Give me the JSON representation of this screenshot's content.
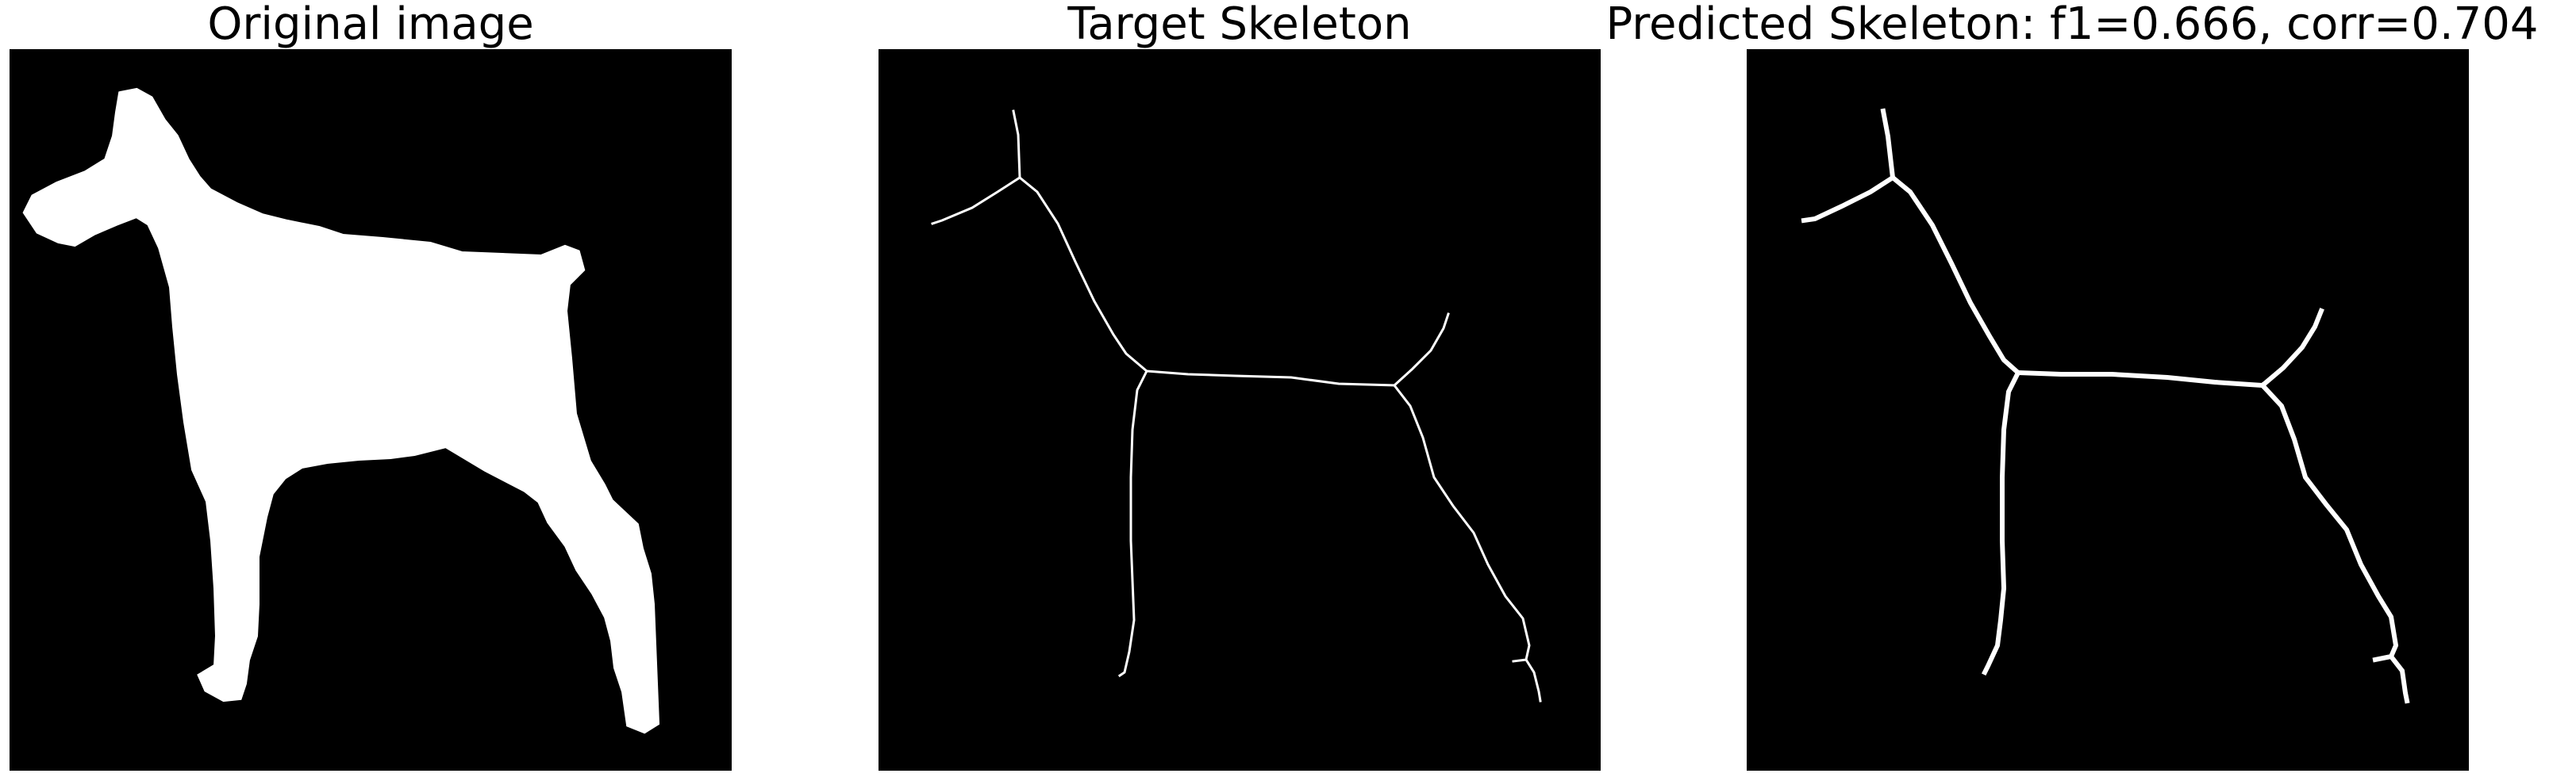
{
  "panels": [
    {
      "title": "Original image",
      "content": "binary dog silhouette"
    },
    {
      "title": "Target Skeleton",
      "content": "thin white skeleton lines"
    },
    {
      "title": "Predicted Skeleton: f1=0.666, corr=0.704",
      "content": "thicker white skeleton lines"
    }
  ],
  "colors": {
    "foreground": "#ffffff",
    "background": "#000000",
    "page": "#ffffff"
  }
}
